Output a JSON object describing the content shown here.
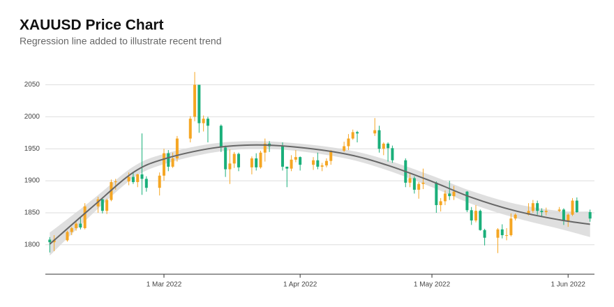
{
  "chart_data": {
    "type": "candlestick",
    "title": "XAUUSD Price Chart",
    "subtitle": "Regression line added to illustrate recent trend",
    "up_color": "#f5a623",
    "down_color": "#1aaf7a",
    "trend_color": "#666666",
    "band_color": "#d9d9d9",
    "grid": true,
    "ylim": [
      1754,
      2080
    ],
    "yticks": [
      1800,
      1850,
      1900,
      1950,
      2000,
      2050
    ],
    "xlim": [
      "2022-02-02",
      "2022-06-07"
    ],
    "xticks": [
      {
        "value": "2022-03-01",
        "label": "1 Mar 2022"
      },
      {
        "value": "2022-04-01",
        "label": "1 Apr 2022"
      },
      {
        "value": "2022-05-01",
        "label": "1 May 2022"
      },
      {
        "value": "2022-06-01",
        "label": "1 Jun 2022"
      }
    ],
    "candles": {
      "x": [
        "2022-02-03",
        "2022-02-04",
        "2022-02-07",
        "2022-02-08",
        "2022-02-09",
        "2022-02-10",
        "2022-02-11",
        "2022-02-14",
        "2022-02-15",
        "2022-02-16",
        "2022-02-17",
        "2022-02-18",
        "2022-02-21",
        "2022-02-22",
        "2022-02-23",
        "2022-02-24",
        "2022-02-25",
        "2022-02-28",
        "2022-03-01",
        "2022-03-02",
        "2022-03-03",
        "2022-03-04",
        "2022-03-07",
        "2022-03-08",
        "2022-03-09",
        "2022-03-10",
        "2022-03-11",
        "2022-03-14",
        "2022-03-15",
        "2022-03-16",
        "2022-03-17",
        "2022-03-18",
        "2022-03-21",
        "2022-03-22",
        "2022-03-23",
        "2022-03-24",
        "2022-03-25",
        "2022-03-28",
        "2022-03-29",
        "2022-03-30",
        "2022-03-31",
        "2022-04-01",
        "2022-04-04",
        "2022-04-05",
        "2022-04-06",
        "2022-04-07",
        "2022-04-08",
        "2022-04-11",
        "2022-04-12",
        "2022-04-13",
        "2022-04-14",
        "2022-04-18",
        "2022-04-19",
        "2022-04-20",
        "2022-04-21",
        "2022-04-22",
        "2022-04-25",
        "2022-04-26",
        "2022-04-27",
        "2022-04-28",
        "2022-04-29",
        "2022-05-02",
        "2022-05-03",
        "2022-05-04",
        "2022-05-05",
        "2022-05-06",
        "2022-05-09",
        "2022-05-10",
        "2022-05-11",
        "2022-05-12",
        "2022-05-13",
        "2022-05-16",
        "2022-05-17",
        "2022-05-18",
        "2022-05-19",
        "2022-05-20",
        "2022-05-23",
        "2022-05-24",
        "2022-05-25",
        "2022-05-26",
        "2022-05-27",
        "2022-05-30",
        "2022-05-31",
        "2022-06-01",
        "2022-06-02",
        "2022-06-03",
        "2022-06-06"
      ],
      "open": [
        1808,
        1804,
        1807,
        1820,
        1826,
        1833,
        1826,
        1860,
        1871,
        1853,
        1870,
        1898,
        1899,
        1906,
        1898,
        1910,
        1903,
        1889,
        1908,
        1943,
        1922,
        1935,
        1966,
        2000,
        2050,
        1990,
        1997,
        1986,
        1952,
        1918,
        1927,
        1942,
        1921,
        1935,
        1921,
        1944,
        1958,
        1954,
        1922,
        1919,
        1933,
        1937,
        1925,
        1932,
        1922,
        1924,
        1931,
        1947,
        1954,
        1966,
        1976,
        1974,
        1979,
        1950,
        1958,
        1951,
        1932,
        1897,
        1904,
        1886,
        1895,
        1897,
        1862,
        1868,
        1880,
        1876,
        1883,
        1854,
        1838,
        1853,
        1823,
        1811,
        1824,
        1815,
        1815,
        1841,
        1847,
        1853,
        1865,
        1853,
        1851,
        1853,
        1855,
        1837,
        1847,
        1869,
        1851
      ],
      "high": [
        1812,
        1815,
        1822,
        1828,
        1836,
        1842,
        1865,
        1875,
        1872,
        1872,
        1902,
        1903,
        1913,
        1914,
        1911,
        1974,
        1907,
        1913,
        1950,
        1948,
        1944,
        1970,
        2001,
        2070,
        2050,
        2002,
        2000,
        1988,
        1955,
        1949,
        1945,
        1944,
        1938,
        1943,
        1947,
        1966,
        1962,
        1960,
        1922,
        1940,
        1948,
        1938,
        1937,
        1944,
        1928,
        1935,
        1948,
        1961,
        1973,
        1980,
        1978,
        1998,
        1986,
        1960,
        1960,
        1955,
        1935,
        1913,
        1907,
        1898,
        1919,
        1899,
        1873,
        1885,
        1900,
        1892,
        1884,
        1859,
        1862,
        1855,
        1825,
        1826,
        1832,
        1826,
        1849,
        1849,
        1865,
        1870,
        1869,
        1857,
        1858,
        1859,
        1857,
        1849,
        1873,
        1874,
        1855
      ],
      "low": [
        1788,
        1790,
        1805,
        1815,
        1822,
        1824,
        1824,
        1850,
        1849,
        1848,
        1868,
        1886,
        1893,
        1895,
        1890,
        1878,
        1883,
        1877,
        1900,
        1915,
        1920,
        1930,
        1960,
        1993,
        1975,
        1977,
        1960,
        1945,
        1906,
        1895,
        1920,
        1915,
        1910,
        1916,
        1919,
        1930,
        1945,
        1916,
        1890,
        1915,
        1929,
        1916,
        1917,
        1918,
        1915,
        1921,
        1925,
        1945,
        1948,
        1964,
        1960,
        1970,
        1944,
        1940,
        1930,
        1928,
        1890,
        1890,
        1880,
        1872,
        1887,
        1850,
        1852,
        1862,
        1870,
        1870,
        1851,
        1831,
        1835,
        1822,
        1799,
        1787,
        1810,
        1807,
        1813,
        1838,
        1846,
        1850,
        1847,
        1844,
        1846,
        1851,
        1831,
        1828,
        1845,
        1850,
        1836
      ],
      "close": [
        1804,
        1808,
        1820,
        1826,
        1833,
        1827,
        1860,
        1871,
        1853,
        1870,
        1898,
        1899,
        1906,
        1898,
        1910,
        1903,
        1889,
        1908,
        1943,
        1922,
        1935,
        1966,
        1997,
        2050,
        1990,
        1997,
        1986,
        1952,
        1918,
        1927,
        1942,
        1921,
        1935,
        1921,
        1944,
        1958,
        1954,
        1922,
        1919,
        1933,
        1937,
        1925,
        1932,
        1922,
        1924,
        1931,
        1947,
        1954,
        1966,
        1976,
        1974,
        1979,
        1950,
        1958,
        1951,
        1932,
        1897,
        1904,
        1886,
        1895,
        1897,
        1862,
        1868,
        1880,
        1876,
        1883,
        1854,
        1838,
        1853,
        1823,
        1811,
        1824,
        1815,
        1815,
        1841,
        1847,
        1853,
        1865,
        1853,
        1851,
        1853,
        1855,
        1837,
        1847,
        1869,
        1851,
        1841
      ]
    },
    "trend": {
      "x": [
        "2022-02-03",
        "2022-02-13",
        "2022-02-22",
        "2022-03-01",
        "2022-03-12",
        "2022-03-22",
        "2022-04-01",
        "2022-04-12",
        "2022-04-21",
        "2022-05-01",
        "2022-05-10",
        "2022-05-20",
        "2022-05-30",
        "2022-06-06"
      ],
      "values": [
        1801,
        1861,
        1913,
        1934,
        1951,
        1956,
        1952,
        1941,
        1924,
        1899,
        1874,
        1853,
        1839,
        1832
      ],
      "lower": [
        1783,
        1850,
        1904,
        1926,
        1944,
        1950,
        1946,
        1934,
        1916,
        1890,
        1864,
        1842,
        1825,
        1812
      ],
      "upper": [
        1819,
        1872,
        1922,
        1942,
        1958,
        1962,
        1958,
        1948,
        1932,
        1908,
        1884,
        1864,
        1853,
        1852
      ]
    }
  }
}
